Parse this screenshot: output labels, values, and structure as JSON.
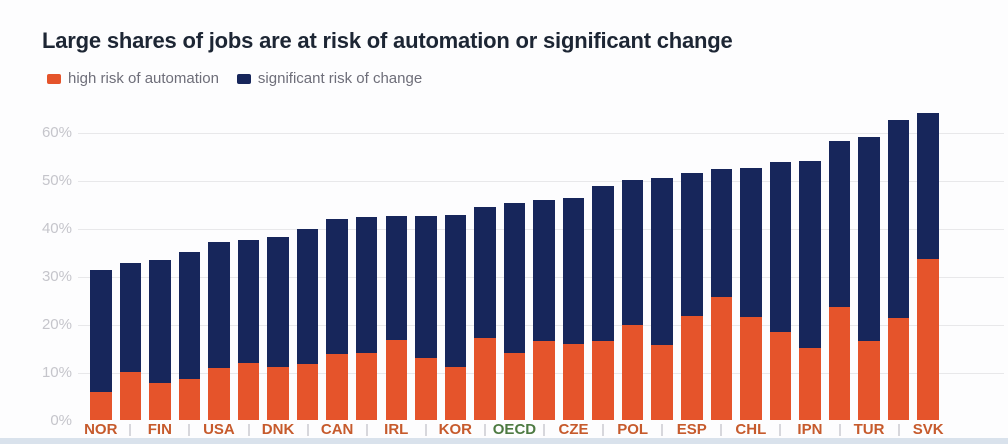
{
  "title": "Large shares of jobs are at risk of automation or significant change",
  "legend": {
    "items": [
      {
        "label": "high risk of automation",
        "color": "#e5542b"
      },
      {
        "label": "significant risk of change",
        "color": "#17265b"
      }
    ]
  },
  "colors": {
    "high_risk": "#e5542b",
    "significant_change": "#17265b",
    "title_text": "#1d2634",
    "legend_text": "#6e6e79",
    "y_tick_text": "#c5c5cb",
    "gridline": "#e8e8ea",
    "x_label_default": "#c65a2c",
    "x_label_oecd": "#4d7a42",
    "separator": "#d7d7dc",
    "bottom_strip": "#d9e2ec"
  },
  "chart_data": {
    "type": "bar",
    "stacked": true,
    "title": "Large shares of jobs are at risk of automation or significant change",
    "categories": [
      "NOR",
      "",
      "FIN",
      "",
      "USA",
      "",
      "DNK",
      "",
      "CAN",
      "",
      "IRL",
      "",
      "KOR",
      "",
      "OECD",
      "",
      "CZE",
      "",
      "POL",
      "",
      "ESP",
      "",
      "CHL",
      "",
      "IPN",
      "",
      "TUR",
      "",
      "SVK"
    ],
    "series": [
      {
        "name": "high risk of automation",
        "values": [
          6.0,
          10.2,
          7.8,
          8.6,
          10.9,
          12.0,
          11.2,
          11.7,
          13.8,
          14.1,
          16.8,
          13.0,
          11.2,
          17.3,
          14.0,
          16.6,
          15.9,
          16.6,
          19.9,
          15.7,
          21.8,
          25.7,
          21.6,
          18.5,
          15.2,
          23.7,
          16.6,
          21.4,
          33.8
        ]
      },
      {
        "name": "significant risk of change",
        "values": [
          25.5,
          22.6,
          25.8,
          26.7,
          26.3,
          25.8,
          27.1,
          28.3,
          28.3,
          28.4,
          25.9,
          29.8,
          31.8,
          27.3,
          31.4,
          29.5,
          30.5,
          32.4,
          30.4,
          34.9,
          30.0,
          26.9,
          31.1,
          35.4,
          39.0,
          34.7,
          42.7,
          41.4,
          30.4
        ]
      }
    ],
    "totals": [
      31.5,
      32.8,
      33.6,
      35.3,
      37.2,
      37.8,
      38.3,
      40.0,
      42.1,
      42.5,
      42.7,
      42.8,
      43.0,
      44.6,
      45.4,
      46.1,
      46.4,
      49.0,
      50.3,
      50.6,
      51.8,
      52.6,
      52.7,
      53.9,
      54.2,
      58.4,
      59.3,
      62.8,
      64.2
    ],
    "y_ticks": [
      "0%",
      "10%",
      "20%",
      "30%",
      "40%",
      "50%",
      "60%"
    ],
    "y_tick_values": [
      0,
      10,
      20,
      30,
      40,
      50,
      60
    ],
    "ylim": [
      0,
      60
    ],
    "grid": true,
    "legend_position": "top-left",
    "highlight_category": "OECD"
  }
}
